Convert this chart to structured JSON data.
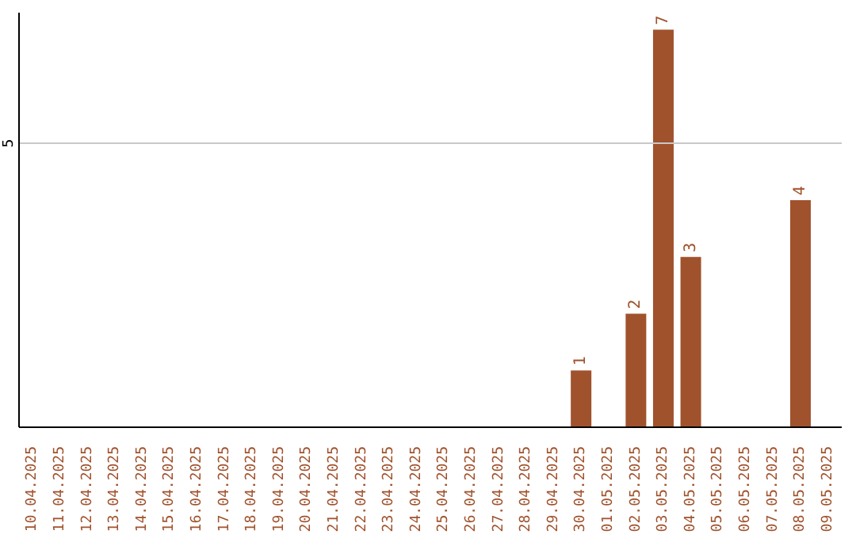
{
  "chart_data": {
    "type": "bar",
    "categories": [
      "10.04.2025",
      "11.04.2025",
      "12.04.2025",
      "13.04.2025",
      "14.04.2025",
      "15.04.2025",
      "16.04.2025",
      "17.04.2025",
      "18.04.2025",
      "19.04.2025",
      "20.04.2025",
      "21.04.2025",
      "22.04.2025",
      "23.04.2025",
      "24.04.2025",
      "25.04.2025",
      "26.04.2025",
      "27.04.2025",
      "28.04.2025",
      "29.04.2025",
      "30.04.2025",
      "01.05.2025",
      "02.05.2025",
      "03.05.2025",
      "04.05.2025",
      "05.05.2025",
      "06.05.2025",
      "07.05.2025",
      "08.05.2025",
      "09.05.2025"
    ],
    "values": [
      null,
      null,
      null,
      null,
      null,
      null,
      null,
      null,
      null,
      null,
      null,
      null,
      null,
      null,
      null,
      null,
      null,
      null,
      null,
      null,
      1,
      null,
      2,
      7,
      3,
      null,
      null,
      null,
      4,
      null
    ],
    "color": "#a0522d",
    "ylim": [
      0,
      7.3
    ],
    "yticks": [
      5
    ],
    "grid": "y",
    "data_labels": true
  }
}
